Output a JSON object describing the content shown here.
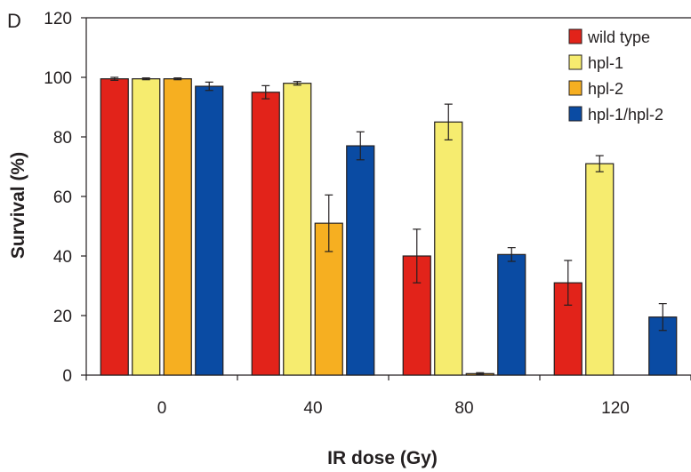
{
  "panel_label": "D",
  "chart_data": {
    "type": "bar",
    "categories": [
      "0",
      "40",
      "80",
      "120"
    ],
    "xlabel": "IR dose (Gy)",
    "ylabel": "Survival (%)",
    "ylim": [
      0,
      120
    ],
    "yticks": [
      "0",
      "20",
      "40",
      "60",
      "80",
      "100",
      "120"
    ],
    "legend_position": "top-right",
    "grid": false,
    "series": [
      {
        "name": "wild type",
        "color": "#e2231a",
        "values": [
          99.5,
          95,
          40,
          31
        ],
        "errors": [
          0.5,
          2.2,
          9,
          7.5
        ]
      },
      {
        "name": "hpl-1",
        "color": "#f6ec6f",
        "values": [
          99.5,
          98,
          85,
          71
        ],
        "errors": [
          0.3,
          0.6,
          6,
          2.7
        ]
      },
      {
        "name": "hpl-2",
        "color": "#f6af21",
        "values": [
          99.5,
          51,
          0.5,
          0
        ],
        "errors": [
          0.3,
          9.5,
          0.3,
          0
        ]
      },
      {
        "name": "hpl-1/hpl-2",
        "color": "#0a4ba3",
        "values": [
          97,
          77,
          40.5,
          19.5
        ],
        "errors": [
          1.4,
          4.7,
          2.3,
          4.5
        ]
      }
    ]
  }
}
